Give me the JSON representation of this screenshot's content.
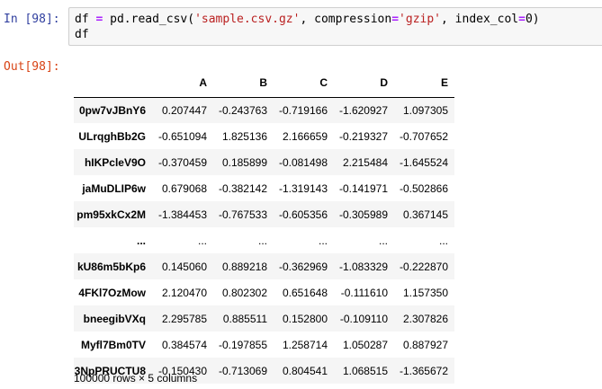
{
  "prompts": {
    "in": "In [98]:",
    "out": "Out[98]:"
  },
  "code": {
    "var": "df",
    "eq": " = ",
    "func": "pd.read_csv(",
    "arg1": "'sample.csv.gz'",
    "sep1": ", compression",
    "eq2": "=",
    "arg2": "'gzip'",
    "sep2": ", index_col",
    "eq3": "=",
    "arg3": "0",
    "close": ")",
    "line2": "df"
  },
  "dataframe": {
    "columns": [
      "",
      "A",
      "B",
      "C",
      "D",
      "E"
    ],
    "rows": [
      [
        "0pw7vJBnY6",
        "0.207447",
        "-0.243763",
        "-0.719166",
        "-1.620927",
        "1.097305"
      ],
      [
        "ULrqghBb2G",
        "-0.651094",
        "1.825136",
        "2.166659",
        "-0.219327",
        "-0.707652"
      ],
      [
        "hIKPcleV9O",
        "-0.370459",
        "0.185899",
        "-0.081498",
        "2.215484",
        "-1.645524"
      ],
      [
        "jaMuDLIP6w",
        "0.679068",
        "-0.382142",
        "-1.319143",
        "-0.141971",
        "-0.502866"
      ],
      [
        "pm95xkCx2M",
        "-1.384453",
        "-0.767533",
        "-0.605356",
        "-0.305989",
        "0.367145"
      ],
      [
        "...",
        "...",
        "...",
        "...",
        "...",
        "..."
      ],
      [
        "kU86m5bKp6",
        "0.145060",
        "0.889218",
        "-0.362969",
        "-1.083329",
        "-0.222870"
      ],
      [
        "4FKl7OzMow",
        "2.120470",
        "0.802302",
        "0.651648",
        "-0.111610",
        "1.157350"
      ],
      [
        "bneegibVXq",
        "2.295785",
        "0.885511",
        "0.152800",
        "-0.109110",
        "2.307826"
      ],
      [
        "Myfl7Bm0TV",
        "0.384574",
        "-0.197855",
        "1.258714",
        "1.050287",
        "0.887927"
      ],
      [
        "3NpPRUCTU8",
        "-0.150430",
        "-0.713069",
        "0.804541",
        "1.068515",
        "-1.365672"
      ]
    ],
    "shape_text": "100000 rows × 5 columns"
  }
}
